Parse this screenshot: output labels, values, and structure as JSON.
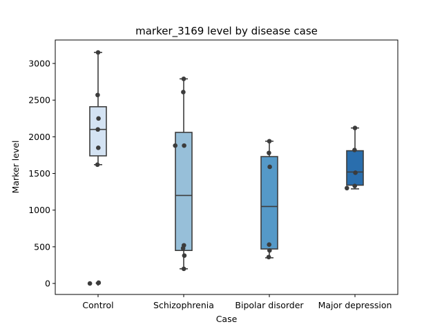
{
  "chart_data": {
    "type": "box",
    "title": "marker_3169 level by disease case",
    "xlabel": "Case",
    "ylabel": "Marker level",
    "ylim": [
      -150,
      3320
    ],
    "yticks": [
      0,
      500,
      1000,
      1500,
      2000,
      2500,
      3000
    ],
    "categories": [
      "Control",
      "Schizophrenia",
      "Bipolar disorder",
      "Major depression"
    ],
    "colors": [
      "#d4e3f3",
      "#97bfd9",
      "#5599c8",
      "#2a6ead"
    ],
    "boxes": [
      {
        "category": "Control",
        "q1": 1740,
        "median": 2100,
        "q3": 2410,
        "whisker_low": 1620,
        "whisker_high": 3150,
        "outliers": [
          10,
          0
        ]
      },
      {
        "category": "Schizophrenia",
        "q1": 450,
        "median": 1200,
        "q3": 2060,
        "whisker_low": 200,
        "whisker_high": 2790,
        "outliers": []
      },
      {
        "category": "Bipolar disorder",
        "q1": 470,
        "median": 1050,
        "q3": 1730,
        "whisker_low": 350,
        "whisker_high": 1940,
        "outliers": []
      },
      {
        "category": "Major depression",
        "q1": 1340,
        "median": 1520,
        "q3": 1810,
        "whisker_low": 1290,
        "whisker_high": 2120,
        "outliers": []
      }
    ],
    "points": [
      {
        "category": "Control",
        "values": [
          3150,
          2570,
          2250,
          2100,
          1850,
          1620,
          10,
          0
        ]
      },
      {
        "category": "Schizophrenia",
        "values": [
          2790,
          2610,
          1880,
          1880,
          520,
          480,
          380,
          200
        ]
      },
      {
        "category": "Bipolar disorder",
        "values": [
          1940,
          1780,
          1590,
          530,
          450,
          360
        ]
      },
      {
        "category": "Major depression",
        "values": [
          2120,
          1820,
          1510,
          1330,
          1300
        ]
      }
    ]
  }
}
